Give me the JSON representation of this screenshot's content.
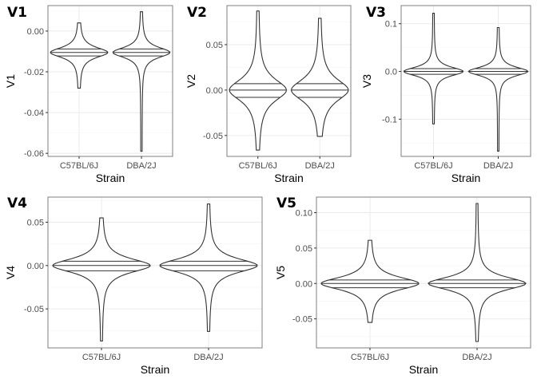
{
  "chart_data": [
    {
      "type": "violin",
      "tag": "V1",
      "xlabel": "Strain",
      "ylabel": "V1",
      "categories": [
        "C57BL/6J",
        "DBA/2J"
      ],
      "ylim": [
        -0.0615,
        0.0125
      ],
      "yticks": [
        0.0,
        -0.02,
        -0.04,
        -0.06
      ],
      "ytick_labels": [
        "0.00",
        "-0.02",
        "-0.04",
        "-0.06"
      ],
      "series": [
        {
          "category": "C57BL/6J",
          "min": -0.028,
          "max": 0.004,
          "center": -0.0105,
          "spread": 0.0025,
          "quantiles": [
            -0.0122,
            -0.0105,
            -0.0088
          ]
        },
        {
          "category": "DBA/2J",
          "min": -0.059,
          "max": 0.0095,
          "center": -0.0105,
          "spread": 0.0025,
          "quantiles": [
            -0.0122,
            -0.0105,
            -0.0088
          ]
        }
      ]
    },
    {
      "type": "violin",
      "tag": "V2",
      "xlabel": "Strain",
      "ylabel": "V2",
      "categories": [
        "C57BL/6J",
        "DBA/2J"
      ],
      "ylim": [
        -0.073,
        0.093
      ],
      "yticks": [
        0.05,
        0.0,
        -0.05
      ],
      "ytick_labels": [
        "0.05",
        "0.00",
        "-0.05"
      ],
      "series": [
        {
          "category": "C57BL/6J",
          "min": -0.066,
          "max": 0.087,
          "center": 0.0,
          "spread": 0.012,
          "quantiles": [
            -0.008,
            0.0,
            0.007
          ]
        },
        {
          "category": "DBA/2J",
          "min": -0.051,
          "max": 0.079,
          "center": 0.0,
          "spread": 0.012,
          "quantiles": [
            -0.008,
            0.0,
            0.007
          ]
        }
      ]
    },
    {
      "type": "violin",
      "tag": "V3",
      "xlabel": "Strain",
      "ylabel": "V3",
      "categories": [
        "C57BL/6J",
        "DBA/2J"
      ],
      "ylim": [
        -0.178,
        0.138
      ],
      "yticks": [
        0.1,
        0.0,
        -0.1
      ],
      "ytick_labels": [
        "0.1",
        "0.0",
        "-0.1"
      ],
      "series": [
        {
          "category": "C57BL/6J",
          "min": -0.11,
          "max": 0.122,
          "center": 0.0,
          "spread": 0.009,
          "quantiles": [
            -0.006,
            0.0,
            0.006
          ]
        },
        {
          "category": "DBA/2J",
          "min": -0.167,
          "max": 0.092,
          "center": 0.0,
          "spread": 0.009,
          "quantiles": [
            -0.006,
            0.0,
            0.006
          ]
        }
      ]
    },
    {
      "type": "violin",
      "tag": "V4",
      "xlabel": "Strain",
      "ylabel": "V4",
      "categories": [
        "C57BL/6J",
        "DBA/2J"
      ],
      "ylim": [
        -0.095,
        0.079
      ],
      "yticks": [
        0.05,
        0.0,
        -0.05
      ],
      "ytick_labels": [
        "0.05",
        "0.00",
        "-0.05"
      ],
      "series": [
        {
          "category": "C57BL/6J",
          "min": -0.087,
          "max": 0.055,
          "center": 0.0,
          "spread": 0.008,
          "quantiles": [
            -0.006,
            0.0,
            0.005
          ]
        },
        {
          "category": "DBA/2J",
          "min": -0.076,
          "max": 0.071,
          "center": 0.0,
          "spread": 0.008,
          "quantiles": [
            -0.006,
            0.0,
            0.005
          ]
        }
      ]
    },
    {
      "type": "violin",
      "tag": "V5",
      "xlabel": "Strain",
      "ylabel": "V5",
      "categories": [
        "C57BL/6J",
        "DBA/2J"
      ],
      "ylim": [
        -0.091,
        0.122
      ],
      "yticks": [
        0.1,
        0.05,
        0.0,
        -0.05
      ],
      "ytick_labels": [
        "0.10",
        "0.05",
        "0.00",
        "-0.05"
      ],
      "series": [
        {
          "category": "C57BL/6J",
          "min": -0.055,
          "max": 0.061,
          "center": 0.0,
          "spread": 0.009,
          "quantiles": [
            -0.006,
            0.0,
            0.005
          ]
        },
        {
          "category": "DBA/2J",
          "min": -0.082,
          "max": 0.113,
          "center": 0.0,
          "spread": 0.009,
          "quantiles": [
            -0.006,
            0.0,
            0.005
          ]
        }
      ]
    }
  ]
}
